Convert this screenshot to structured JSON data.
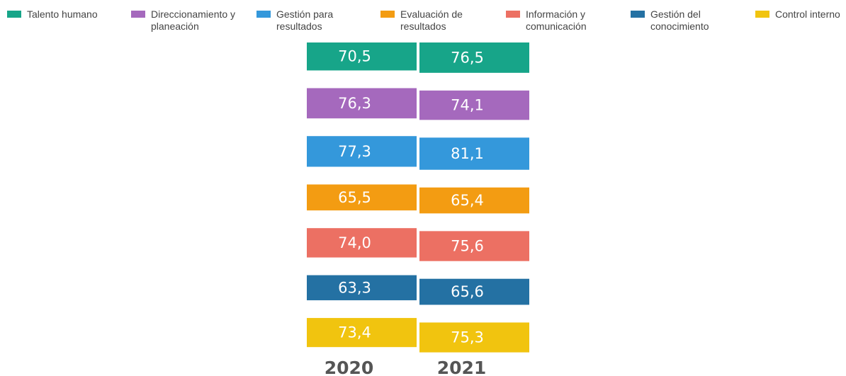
{
  "chart_data": {
    "type": "bar",
    "stacked": true,
    "categories": [
      "2020",
      "2021"
    ],
    "series": [
      {
        "name": "Talento humano",
        "color": "#17a589",
        "values": [
          70.5,
          76.5
        ],
        "value_labels": [
          "70,5",
          "76,5"
        ]
      },
      {
        "name": "Direccionamiento y planeación",
        "color": "#a569bd",
        "values": [
          76.3,
          74.1
        ],
        "value_labels": [
          "76,3",
          "74,1"
        ]
      },
      {
        "name": "Gestión para resultados",
        "color": "#3498db",
        "values": [
          77.3,
          81.1
        ],
        "value_labels": [
          "77,3",
          "81,1"
        ]
      },
      {
        "name": "Evaluación de resultados",
        "color": "#f39c12",
        "values": [
          65.5,
          65.4
        ],
        "value_labels": [
          "65,5",
          "65,4"
        ]
      },
      {
        "name": "Información y comunicación",
        "color": "#ec7063",
        "values": [
          74.0,
          75.6
        ],
        "value_labels": [
          "74,0",
          "75,6"
        ]
      },
      {
        "name": "Gestión del conocimiento",
        "color": "#2471a3",
        "values": [
          63.3,
          65.6
        ],
        "value_labels": [
          "63,3",
          "65,6"
        ]
      },
      {
        "name": "Control interno",
        "color": "#f1c40f",
        "values": [
          73.4,
          75.3
        ],
        "value_labels": [
          "73,4",
          "75,3"
        ]
      }
    ]
  }
}
